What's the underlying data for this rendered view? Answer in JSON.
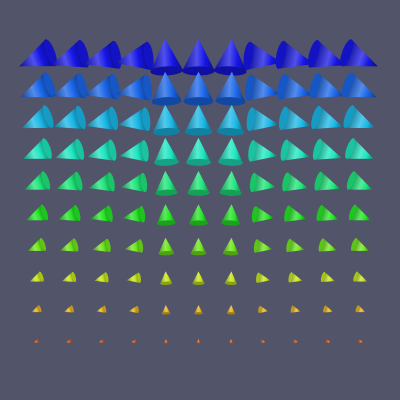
{
  "scene": {
    "background": "#525469",
    "glyph_shape": "cone",
    "grid": {
      "columns": 11,
      "rows": 10
    },
    "row_colors": [
      "#1616e6",
      "#1a66e8",
      "#1ab7e6",
      "#1ee6c0",
      "#1ee67a",
      "#26e626",
      "#6ee61a",
      "#c6e61a",
      "#e6b41a",
      "#e8621a"
    ],
    "row_magnitudes": [
      1.0,
      0.92,
      0.84,
      0.76,
      0.68,
      0.58,
      0.48,
      0.37,
      0.26,
      0.13
    ],
    "column_directions_deg": [
      -20,
      -16,
      -12,
      -8,
      -3,
      0,
      3,
      8,
      12,
      16,
      20
    ]
  }
}
